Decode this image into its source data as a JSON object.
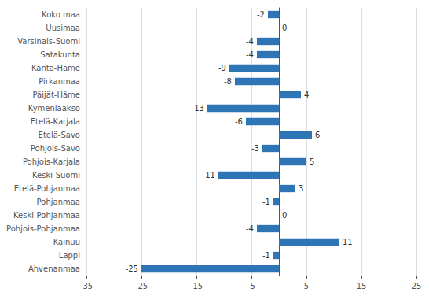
{
  "chart_data": {
    "type": "bar",
    "orientation": "horizontal",
    "categories": [
      "Ahvenanmaa",
      "Lappi",
      "Kainuu",
      "Pohjois-Pohjanmaa",
      "Keski-Pohjanmaa",
      "Pohjanmaa",
      "Etelä-Pohjanmaa",
      "Keski-Suomi",
      "Pohjois-Karjala",
      "Pohjois-Savo",
      "Etelä-Savo",
      "Etelä-Karjala",
      "Kymenlaakso",
      "Päijät-Häme",
      "Pirkanmaa",
      "Kanta-Häme",
      "Satakunta",
      "Varsinais-Suomi",
      "Uusimaa",
      "Koko maa"
    ],
    "values": [
      -25,
      -1,
      11,
      -4,
      0,
      -1,
      3,
      -11,
      5,
      -3,
      6,
      -6,
      -13,
      4,
      -8,
      -9,
      -4,
      -4,
      0,
      -2
    ],
    "color": "#2e75b6",
    "xlim": [
      -35,
      25
    ],
    "xticks": [
      -35,
      -25,
      -15,
      -5,
      5,
      15,
      25
    ],
    "grid": true,
    "data_labels": true
  }
}
